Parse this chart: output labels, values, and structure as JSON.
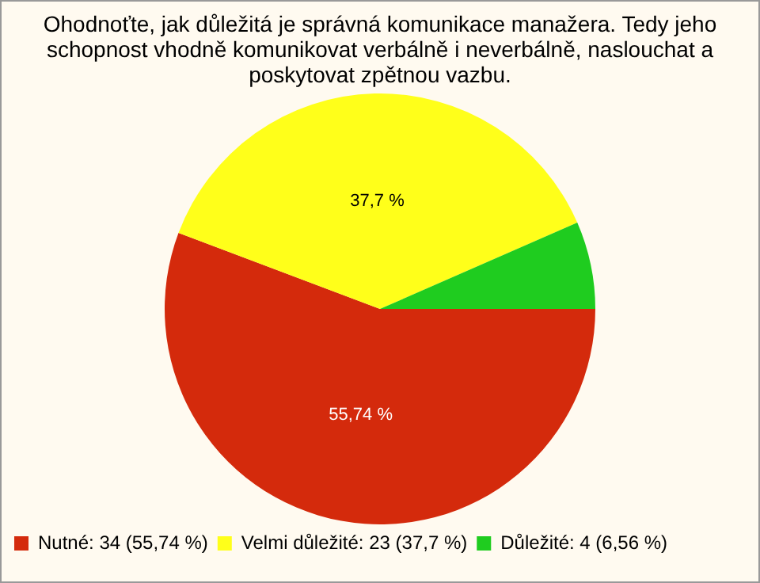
{
  "chart_data": {
    "type": "pie",
    "title": "Ohodnoťte, jak důležitá je správná komunikace manažera. Tedy jeho schopnost vhodně komunikovat verbálně i neverbálně, naslouchat a poskytovat zpětnou vazbu.",
    "categories": [
      "Nutné: 34 (55,74 %)",
      "Velmi důležité: 23 (37,7 %)",
      "Důležité: 4 (6,56 %)"
    ],
    "values": [
      55.74,
      37.7,
      6.56
    ],
    "colors": [
      "#d42a0c",
      "#ffff1a",
      "#1fcc1f"
    ],
    "value_labels": [
      "55,74 %",
      "37,7 %",
      null
    ],
    "legend": "bottom left"
  }
}
